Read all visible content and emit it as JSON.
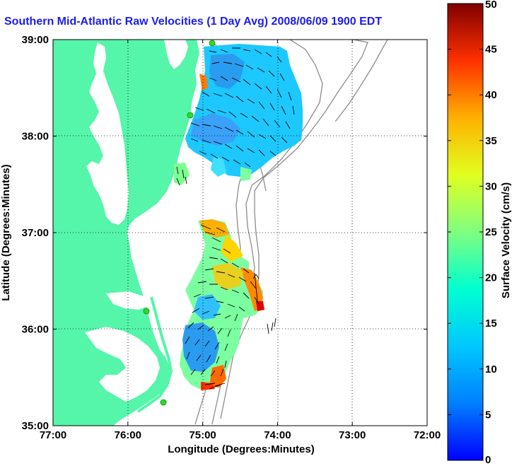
{
  "title": "Southern Mid-Atlantic Raw Velocities (1 Day Avg) 2008/06/09 1900 EDT",
  "xaxis": {
    "label": "Longitude (Degrees:Minutes)",
    "ticks": [
      "77:00",
      "76:00",
      "75:00",
      "74:00",
      "73:00",
      "72:00"
    ],
    "range": [
      -77,
      -72
    ]
  },
  "yaxis": {
    "label": "Latitude (Degrees:Minutes)",
    "ticks": [
      "39:00",
      "38:00",
      "37:00",
      "36:00",
      "35:00"
    ],
    "range": [
      35,
      39
    ]
  },
  "colorbar": {
    "label": "Surface Velocity (cm/s)",
    "ticks": [
      "50",
      "45",
      "40",
      "35",
      "30",
      "25",
      "20",
      "15",
      "10",
      "5",
      "0"
    ],
    "range": [
      0,
      50
    ]
  },
  "colors": {
    "title": "#1c1cf0",
    "land": "#55f5aa",
    "bathymetry": "#8c8c8c",
    "station": "#2adc2a"
  }
}
